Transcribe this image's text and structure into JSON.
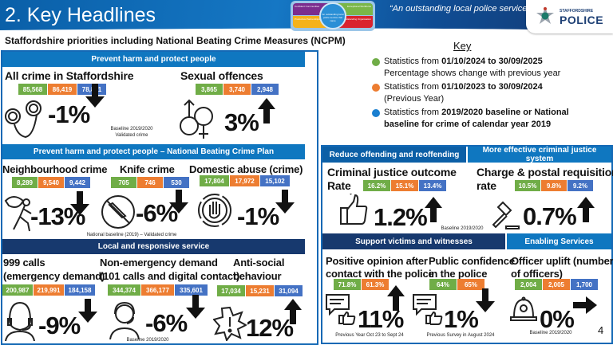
{
  "header": {
    "title": "2. Key Headlines",
    "slogan": "“An outstanding local police service”",
    "vision_logo": {
      "center": "An outstanding local police service that cares",
      "quadrants": [
        "Confident Communities",
        "Exceptional Workforce",
        "Productive Partnerships",
        "Outstanding Organisation"
      ]
    },
    "brand": {
      "line1": "STAFFORDSHIRE",
      "line2": "POLICE"
    }
  },
  "subtitle": "Staffordshire priorities including National Beating Crime Measures (NCPM)",
  "colors": {
    "current": "#70ad47",
    "previous": "#ed7d31",
    "baseline": "#4472c4",
    "header_blue": "#0f77c0",
    "header_navy": "#17396e"
  },
  "key": {
    "title": "Key",
    "items": [
      {
        "color": "green",
        "prefix": "Statistics from ",
        "bold": "01/10/2024 to 30/09/2025",
        "line2": "Percentage shows change with previous year"
      },
      {
        "color": "orange",
        "prefix": "Statistics from ",
        "bold": "01/10/2023 to 30/09/2024",
        "line2": "(Previous Year)"
      },
      {
        "color": "blue",
        "prefix": "Statistics from ",
        "bold": "2019/2020 baseline or National",
        "line2": "baseline for crime of calendar year 2019"
      }
    ]
  },
  "sections": {
    "s1": "Prevent harm and protect people",
    "s2": "Prevent harm and protect people – National Beating Crime Plan",
    "s3": "Local and responsive service",
    "s4": "Reduce offending and reoffending",
    "s5": "More effective criminal justice system",
    "s6": "Support victims and witnesses",
    "s7": "Enabling Services"
  },
  "metrics": {
    "all_crime": {
      "title": "All crime in Staffordshire",
      "values": [
        "85,568",
        "86,419",
        "78,851"
      ],
      "change": "-1%",
      "arrow": "down",
      "icon": "handcuffs-icon",
      "note1": "Baseline 2019/2020",
      "note2": "Validated crime"
    },
    "sexual": {
      "title": "Sexual offences",
      "values": [
        "3,865",
        "3,740",
        "2,948"
      ],
      "change": "3%",
      "arrow": "up",
      "icon": "gender-symbols-icon"
    },
    "neighbourhood": {
      "title": "Neighbourhood crime",
      "values": [
        "8,289",
        "9,540",
        "9,442"
      ],
      "change": "-13%",
      "arrow": "down",
      "icon": "thief-icon"
    },
    "knife": {
      "title": "Knife crime",
      "values": [
        "705",
        "746",
        "530"
      ],
      "change": "-6%",
      "arrow": "down",
      "icon": "no-knife-icon",
      "note": "National baseline (2019) – Validated crime"
    },
    "domestic": {
      "title": "Domestic abuse (crime)",
      "values": [
        "17,804",
        "17,972",
        "15,102"
      ],
      "change": "-1%",
      "arrow": "down",
      "icon": "stop-hand-icon"
    },
    "calls999": {
      "title1": "999 calls",
      "title2": "(emergency demand)",
      "values": [
        "200,987",
        "219,991",
        "184,158"
      ],
      "change": "-9%",
      "arrow": "down",
      "icon": "headset-operator-icon"
    },
    "nonemergency": {
      "title1": "Non-emergency demand",
      "title2": "(101 calls and digital contact)",
      "values": [
        "344,374",
        "366,177",
        "335,601"
      ],
      "change": "-6%",
      "arrow": "down",
      "icon": "headset-operator-icon",
      "note": "Baseline 2019/2020"
    },
    "asb": {
      "title1": "Anti-social",
      "title2": "behaviour",
      "values": [
        "17,034",
        "15,231",
        "31,094"
      ],
      "change": "12%",
      "arrow": "up",
      "icon": "alert-burst-icon"
    },
    "cj_outcome": {
      "title1": "Criminal justice outcome",
      "title2": "Rate",
      "values": [
        "16.2%",
        "15.1%",
        "13.4%"
      ],
      "change": "1.2%",
      "arrow": "up",
      "icon": "thumbs-up-icon",
      "note": "Baseline 2019/2020"
    },
    "charge": {
      "title1": "Charge & postal requisition",
      "title2": "rate",
      "values": [
        "10.5%",
        "9.8%",
        "9.2%"
      ],
      "change": "0.7%",
      "arrow": "up",
      "icon": "gavel-icon"
    },
    "positive": {
      "title1": "Positive opinion after",
      "title2": "contact with the police",
      "values": [
        "71.8%",
        "61.3%"
      ],
      "change": "11%",
      "arrow": "up",
      "icon": "feedback-thumbs-icon",
      "note": "Previous Year Oct 23 to Sept 24"
    },
    "confidence": {
      "title1": "Public confidence",
      "title2": "in the police",
      "values": [
        "64%",
        "65%"
      ],
      "change": "1%",
      "arrow": "down",
      "icon": "feedback-thumbs-icon",
      "note": "Previous Survey in August 2024"
    },
    "uplift": {
      "title1": "Officer uplift (number",
      "title2": "of officers)",
      "values": [
        "2,004",
        "2,005",
        "1,700"
      ],
      "change": "0%",
      "arrow": "right",
      "icon": "police-helmet-icon",
      "note": "Baseline 2019/2020"
    }
  },
  "page_number": "4"
}
